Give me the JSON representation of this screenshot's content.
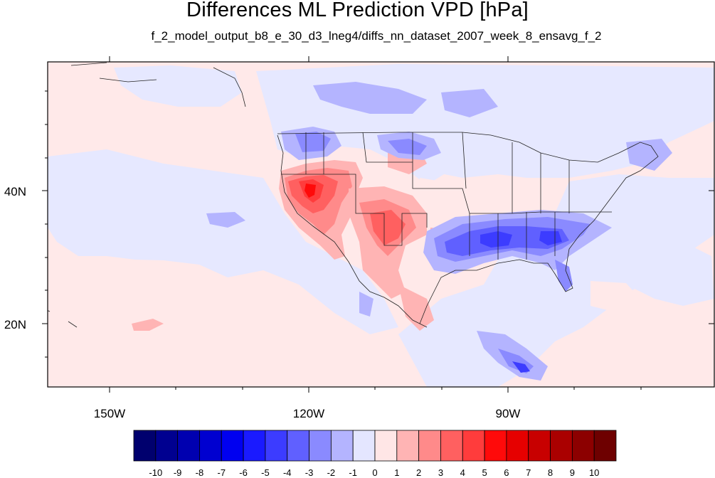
{
  "figure": {
    "title": "Differences ML Prediction VPD [hPa]",
    "subtitle": "f_2_model_output_b8_e_30_d3_lneg4/diffs_nn_dataset_2007_week_8_ensavg_f_2"
  },
  "map": {
    "lon_range": [
      -160,
      -61
    ],
    "lat_range": [
      11,
      58
    ],
    "x_tick_labels": [
      "150W",
      "120W",
      "90W"
    ],
    "x_tick_values": [
      -150,
      -120,
      -90
    ],
    "y_tick_labels": [
      "20N",
      "40N"
    ],
    "y_tick_values": [
      20,
      40
    ],
    "background_value": "slightly positive over ocean, slightly negative elsewhere",
    "regions": [
      {
        "name": "california-nevada-hotspot",
        "sign": "positive",
        "peak": 6
      },
      {
        "name": "southwest-hotspot",
        "sign": "positive",
        "peak": 4
      },
      {
        "name": "gulf-coast-southeast",
        "sign": "negative",
        "peak": -5
      },
      {
        "name": "pacific-northwest",
        "sign": "negative",
        "peak": -3
      },
      {
        "name": "northern-plains",
        "sign": "negative",
        "peak": -3
      },
      {
        "name": "central-america",
        "sign": "negative",
        "peak": -4
      }
    ]
  },
  "colorbar": {
    "labels": [
      "-10",
      "-9",
      "-8",
      "-7",
      "-6",
      "-5",
      "-4",
      "-3",
      "-2",
      "-1",
      "0",
      "1",
      "2",
      "3",
      "4",
      "5",
      "6",
      "7",
      "8",
      "9",
      "10"
    ],
    "colors": [
      "#00006e",
      "#000090",
      "#0000b0",
      "#0000d0",
      "#0000f0",
      "#1a1aff",
      "#3c3cff",
      "#6060ff",
      "#8a8aff",
      "#b4b4ff",
      "#e4e6ff",
      "#ffe6e6",
      "#ffb4b4",
      "#ff8a8a",
      "#ff6060",
      "#ff3c3c",
      "#ff0a0a",
      "#e60000",
      "#c80000",
      "#aa0000",
      "#8c0000",
      "#6e0000"
    ]
  }
}
